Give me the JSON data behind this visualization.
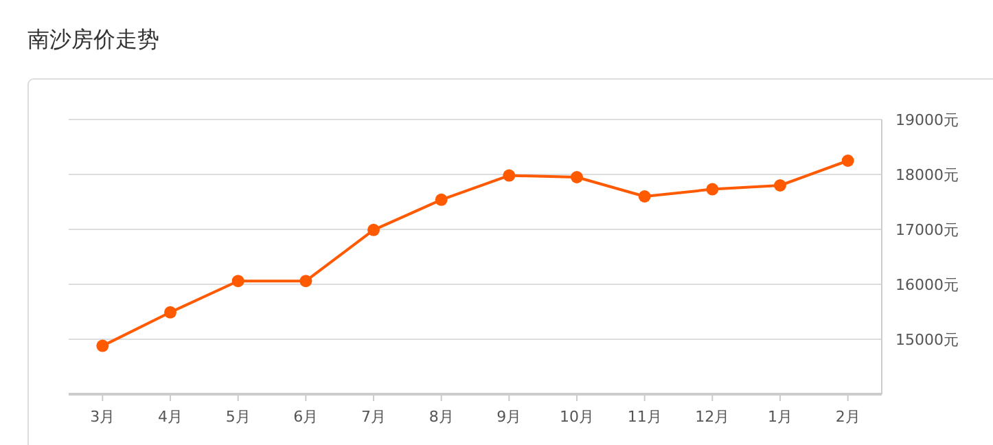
{
  "chart_data": {
    "type": "line",
    "title": "南沙房价走势",
    "categories": [
      "3月",
      "4月",
      "5月",
      "6月",
      "7月",
      "8月",
      "9月",
      "10月",
      "11月",
      "12月",
      "1月",
      "2月"
    ],
    "series": [
      {
        "color": "#ff5a00",
        "values": [
          14880,
          15490,
          16060,
          16060,
          16990,
          17540,
          17980,
          17950,
          17600,
          17730,
          17800,
          18250
        ]
      }
    ],
    "ylim": [
      14000,
      19000
    ],
    "yticks": [
      {
        "value": 14000,
        "label": null
      },
      {
        "value": 15000,
        "label": "15000元"
      },
      {
        "value": 16000,
        "label": "16000元"
      },
      {
        "value": 17000,
        "label": "17000元"
      },
      {
        "value": 18000,
        "label": "18000元"
      },
      {
        "value": 19000,
        "label": "19000元"
      }
    ],
    "grid": "y",
    "marker": "circle",
    "line_style": "solid"
  }
}
